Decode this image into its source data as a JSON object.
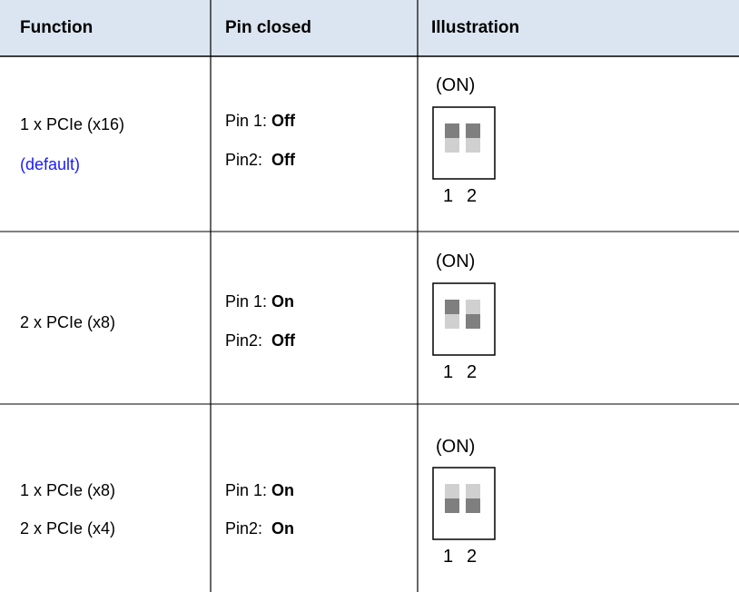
{
  "table": {
    "header": [
      "Function",
      "Pin closed",
      "Illustration"
    ],
    "rows": [
      {
        "function": [
          "1 x PCIe (x16)",
          "(default)"
        ],
        "pins": [
          {
            "label": "Pin 1:",
            "state": "Off"
          },
          {
            "label": "Pin2:",
            "state": "Off"
          }
        ],
        "illustration": {
          "on_label": "(ON)",
          "pin_numbers": [
            "1",
            "2"
          ]
        }
      },
      {
        "function": [
          "2 x PCIe (x8)"
        ],
        "pins": [
          {
            "label": "Pin 1:",
            "state": "On"
          },
          {
            "label": "Pin2:",
            "state": "Off"
          }
        ],
        "illustration": {
          "on_label": "(ON)",
          "pin_numbers": [
            "1",
            "2"
          ]
        }
      },
      {
        "function": [
          "1 x PCIe (x8)",
          "2 x PCIe (x4)"
        ],
        "pins": [
          {
            "label": "Pin 1:",
            "state": "On"
          },
          {
            "label": "Pin2:",
            "state": "On"
          }
        ],
        "illustration": {
          "on_label": "(ON)",
          "pin_numbers": [
            "1",
            "2"
          ]
        }
      }
    ]
  }
}
